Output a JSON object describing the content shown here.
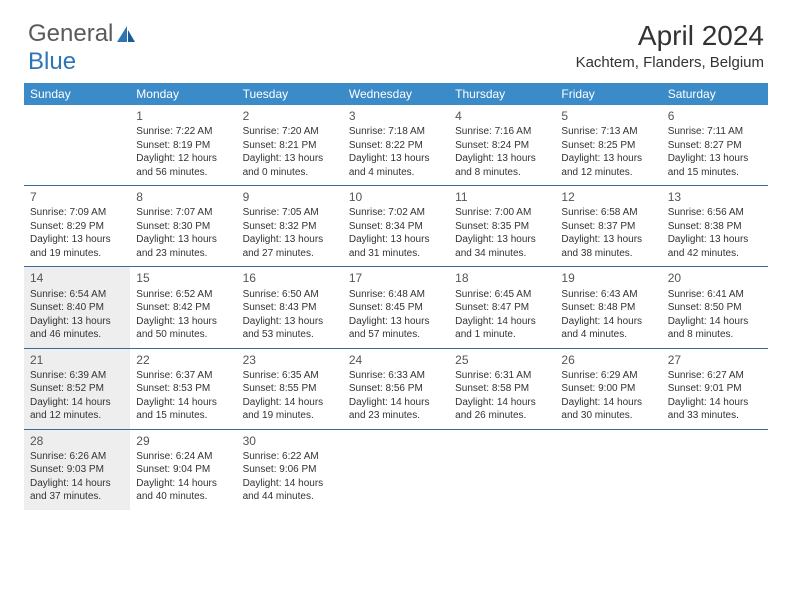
{
  "brand": {
    "part1": "General",
    "part2": "Blue"
  },
  "title": "April 2024",
  "location": "Kachtem, Flanders, Belgium",
  "colors": {
    "header_bg": "#3b8bc9",
    "header_text": "#ffffff",
    "week_border": "#3b6a9a",
    "shaded_bg": "#eeeeee",
    "text": "#333333",
    "logo_gray": "#5a5a5a",
    "logo_blue": "#2e75b6"
  },
  "day_names": [
    "Sunday",
    "Monday",
    "Tuesday",
    "Wednesday",
    "Thursday",
    "Friday",
    "Saturday"
  ],
  "weeks": [
    [
      {
        "num": "",
        "shaded": false
      },
      {
        "num": "1",
        "sunrise": "Sunrise: 7:22 AM",
        "sunset": "Sunset: 8:19 PM",
        "daylight": "Daylight: 12 hours and 56 minutes.",
        "shaded": false
      },
      {
        "num": "2",
        "sunrise": "Sunrise: 7:20 AM",
        "sunset": "Sunset: 8:21 PM",
        "daylight": "Daylight: 13 hours and 0 minutes.",
        "shaded": false
      },
      {
        "num": "3",
        "sunrise": "Sunrise: 7:18 AM",
        "sunset": "Sunset: 8:22 PM",
        "daylight": "Daylight: 13 hours and 4 minutes.",
        "shaded": false
      },
      {
        "num": "4",
        "sunrise": "Sunrise: 7:16 AM",
        "sunset": "Sunset: 8:24 PM",
        "daylight": "Daylight: 13 hours and 8 minutes.",
        "shaded": false
      },
      {
        "num": "5",
        "sunrise": "Sunrise: 7:13 AM",
        "sunset": "Sunset: 8:25 PM",
        "daylight": "Daylight: 13 hours and 12 minutes.",
        "shaded": false
      },
      {
        "num": "6",
        "sunrise": "Sunrise: 7:11 AM",
        "sunset": "Sunset: 8:27 PM",
        "daylight": "Daylight: 13 hours and 15 minutes.",
        "shaded": false
      }
    ],
    [
      {
        "num": "7",
        "sunrise": "Sunrise: 7:09 AM",
        "sunset": "Sunset: 8:29 PM",
        "daylight": "Daylight: 13 hours and 19 minutes.",
        "shaded": false
      },
      {
        "num": "8",
        "sunrise": "Sunrise: 7:07 AM",
        "sunset": "Sunset: 8:30 PM",
        "daylight": "Daylight: 13 hours and 23 minutes.",
        "shaded": false
      },
      {
        "num": "9",
        "sunrise": "Sunrise: 7:05 AM",
        "sunset": "Sunset: 8:32 PM",
        "daylight": "Daylight: 13 hours and 27 minutes.",
        "shaded": false
      },
      {
        "num": "10",
        "sunrise": "Sunrise: 7:02 AM",
        "sunset": "Sunset: 8:34 PM",
        "daylight": "Daylight: 13 hours and 31 minutes.",
        "shaded": false
      },
      {
        "num": "11",
        "sunrise": "Sunrise: 7:00 AM",
        "sunset": "Sunset: 8:35 PM",
        "daylight": "Daylight: 13 hours and 34 minutes.",
        "shaded": false
      },
      {
        "num": "12",
        "sunrise": "Sunrise: 6:58 AM",
        "sunset": "Sunset: 8:37 PM",
        "daylight": "Daylight: 13 hours and 38 minutes.",
        "shaded": false
      },
      {
        "num": "13",
        "sunrise": "Sunrise: 6:56 AM",
        "sunset": "Sunset: 8:38 PM",
        "daylight": "Daylight: 13 hours and 42 minutes.",
        "shaded": false
      }
    ],
    [
      {
        "num": "14",
        "sunrise": "Sunrise: 6:54 AM",
        "sunset": "Sunset: 8:40 PM",
        "daylight": "Daylight: 13 hours and 46 minutes.",
        "shaded": true
      },
      {
        "num": "15",
        "sunrise": "Sunrise: 6:52 AM",
        "sunset": "Sunset: 8:42 PM",
        "daylight": "Daylight: 13 hours and 50 minutes.",
        "shaded": false
      },
      {
        "num": "16",
        "sunrise": "Sunrise: 6:50 AM",
        "sunset": "Sunset: 8:43 PM",
        "daylight": "Daylight: 13 hours and 53 minutes.",
        "shaded": false
      },
      {
        "num": "17",
        "sunrise": "Sunrise: 6:48 AM",
        "sunset": "Sunset: 8:45 PM",
        "daylight": "Daylight: 13 hours and 57 minutes.",
        "shaded": false
      },
      {
        "num": "18",
        "sunrise": "Sunrise: 6:45 AM",
        "sunset": "Sunset: 8:47 PM",
        "daylight": "Daylight: 14 hours and 1 minute.",
        "shaded": false
      },
      {
        "num": "19",
        "sunrise": "Sunrise: 6:43 AM",
        "sunset": "Sunset: 8:48 PM",
        "daylight": "Daylight: 14 hours and 4 minutes.",
        "shaded": false
      },
      {
        "num": "20",
        "sunrise": "Sunrise: 6:41 AM",
        "sunset": "Sunset: 8:50 PM",
        "daylight": "Daylight: 14 hours and 8 minutes.",
        "shaded": false
      }
    ],
    [
      {
        "num": "21",
        "sunrise": "Sunrise: 6:39 AM",
        "sunset": "Sunset: 8:52 PM",
        "daylight": "Daylight: 14 hours and 12 minutes.",
        "shaded": true
      },
      {
        "num": "22",
        "sunrise": "Sunrise: 6:37 AM",
        "sunset": "Sunset: 8:53 PM",
        "daylight": "Daylight: 14 hours and 15 minutes.",
        "shaded": false
      },
      {
        "num": "23",
        "sunrise": "Sunrise: 6:35 AM",
        "sunset": "Sunset: 8:55 PM",
        "daylight": "Daylight: 14 hours and 19 minutes.",
        "shaded": false
      },
      {
        "num": "24",
        "sunrise": "Sunrise: 6:33 AM",
        "sunset": "Sunset: 8:56 PM",
        "daylight": "Daylight: 14 hours and 23 minutes.",
        "shaded": false
      },
      {
        "num": "25",
        "sunrise": "Sunrise: 6:31 AM",
        "sunset": "Sunset: 8:58 PM",
        "daylight": "Daylight: 14 hours and 26 minutes.",
        "shaded": false
      },
      {
        "num": "26",
        "sunrise": "Sunrise: 6:29 AM",
        "sunset": "Sunset: 9:00 PM",
        "daylight": "Daylight: 14 hours and 30 minutes.",
        "shaded": false
      },
      {
        "num": "27",
        "sunrise": "Sunrise: 6:27 AM",
        "sunset": "Sunset: 9:01 PM",
        "daylight": "Daylight: 14 hours and 33 minutes.",
        "shaded": false
      }
    ],
    [
      {
        "num": "28",
        "sunrise": "Sunrise: 6:26 AM",
        "sunset": "Sunset: 9:03 PM",
        "daylight": "Daylight: 14 hours and 37 minutes.",
        "shaded": true
      },
      {
        "num": "29",
        "sunrise": "Sunrise: 6:24 AM",
        "sunset": "Sunset: 9:04 PM",
        "daylight": "Daylight: 14 hours and 40 minutes.",
        "shaded": false
      },
      {
        "num": "30",
        "sunrise": "Sunrise: 6:22 AM",
        "sunset": "Sunset: 9:06 PM",
        "daylight": "Daylight: 14 hours and 44 minutes.",
        "shaded": false
      },
      {
        "num": "",
        "shaded": false
      },
      {
        "num": "",
        "shaded": false
      },
      {
        "num": "",
        "shaded": false
      },
      {
        "num": "",
        "shaded": false
      }
    ]
  ]
}
